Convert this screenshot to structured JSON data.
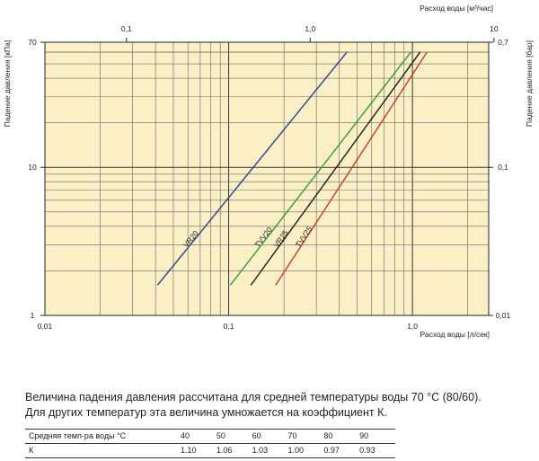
{
  "chart_data": {
    "type": "line",
    "scale": "log-log",
    "x_bottom_label": "Расход воды [л/сек]",
    "x_top_label": "Расход воды [м³/час]",
    "y_left_label": "Падение давления [кПа]",
    "y_right_label": "Падение давления [бар]",
    "x_bottom_ticks": [
      "0,01",
      "0,1",
      "1,0"
    ],
    "x_top_ticks": [
      "0,1",
      "1,0",
      "10"
    ],
    "y_left_ticks": [
      "1",
      "10",
      "70"
    ],
    "y_right_ticks": [
      "0,01",
      "0,1",
      "0,7"
    ],
    "xlim": [
      0.01,
      2.6
    ],
    "ylim": [
      1,
      70
    ],
    "grid": true,
    "background": "#fbefc6",
    "series": [
      {
        "name": "VR20",
        "color": "#2c3e8f",
        "x": [
          0.041,
          0.44
        ],
        "y": [
          1.6,
          60
        ]
      },
      {
        "name": "TVV20",
        "color": "#2e9a3a",
        "x": [
          0.102,
          0.98
        ],
        "y": [
          1.6,
          60
        ]
      },
      {
        "name": "VR25",
        "color": "#1a1a1a",
        "x": [
          0.132,
          1.1
        ],
        "y": [
          1.6,
          60
        ]
      },
      {
        "name": "TVV25",
        "color": "#c0392b",
        "x": [
          0.18,
          1.2
        ],
        "y": [
          1.6,
          60
        ]
      }
    ]
  },
  "note": {
    "line1": "Величина падения давления рассчитана для средней температуры воды 70 °С (80/60).",
    "line2": "Для других температур эта величина умножается на коэффициент К."
  },
  "k_table": {
    "header_label": "Средняя темп-ра воды °С",
    "temps": [
      "40",
      "50",
      "60",
      "70",
      "80",
      "90"
    ],
    "k_label": "К",
    "k_values": [
      "1.10",
      "1.06",
      "1.03",
      "1.00",
      "0.97",
      "0.93"
    ]
  }
}
